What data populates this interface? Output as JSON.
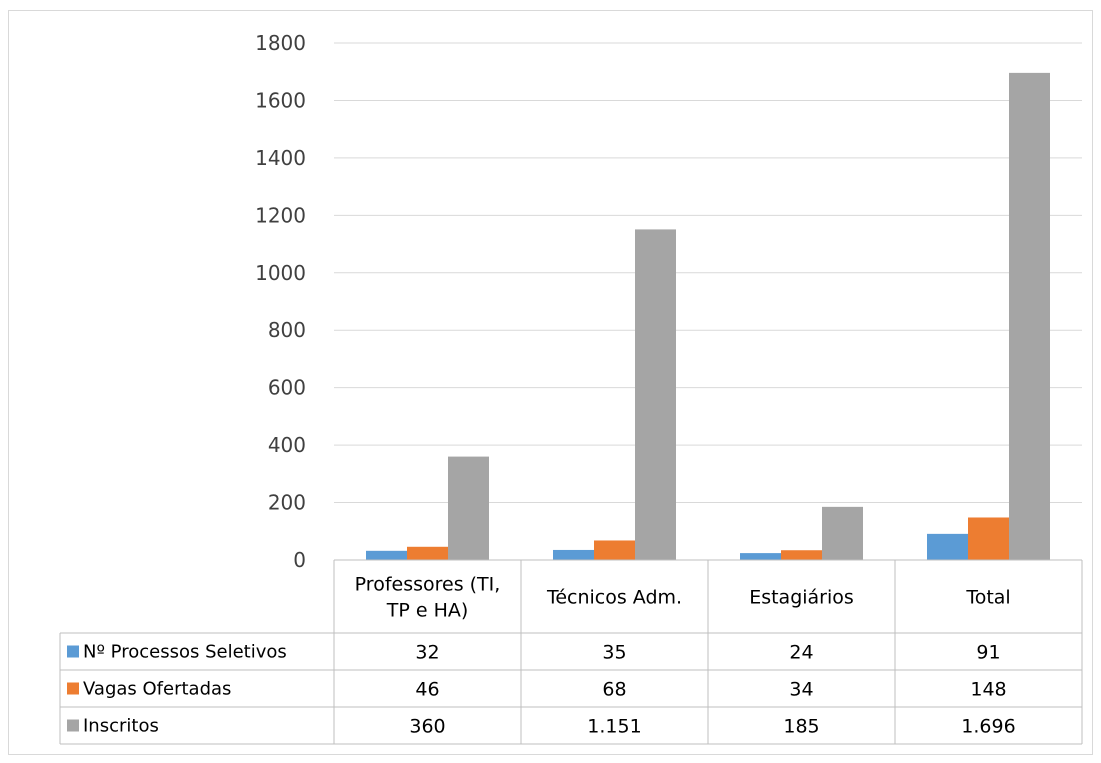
{
  "chart_data": {
    "type": "bar",
    "title": "",
    "xlabel": "",
    "ylabel": "",
    "ylim": [
      0,
      1800
    ],
    "yticks": [
      0,
      200,
      400,
      600,
      800,
      1000,
      1200,
      1400,
      1600,
      1800
    ],
    "grid": true,
    "legend": "data-table-left",
    "categories": [
      [
        "Professores (TI,",
        "TP e HA)"
      ],
      [
        "Técnicos Adm."
      ],
      [
        "Estagiários"
      ],
      [
        "Total"
      ]
    ],
    "series": [
      {
        "name": "Nº Processos Seletivos",
        "color": "#5b9bd5",
        "values": [
          32,
          35,
          24,
          91
        ],
        "labels": [
          "32",
          "35",
          "24",
          "91"
        ]
      },
      {
        "name": "Vagas Ofertadas",
        "color": "#ed7d31",
        "values": [
          46,
          68,
          34,
          148
        ],
        "labels": [
          "46",
          "68",
          "34",
          "148"
        ]
      },
      {
        "name": "Inscritos",
        "color": "#a5a5a5",
        "values": [
          360,
          1151,
          185,
          1696
        ],
        "labels": [
          "360",
          "1.151",
          "185",
          "1.696"
        ]
      }
    ]
  }
}
